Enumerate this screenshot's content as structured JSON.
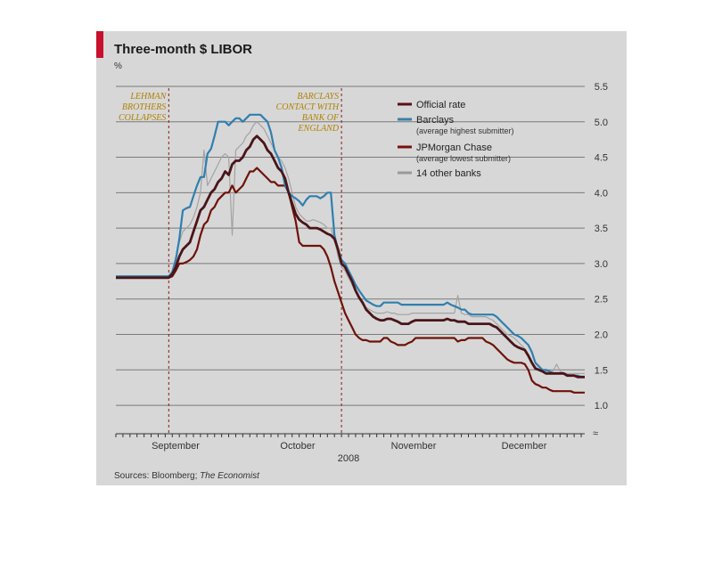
{
  "chart_data": {
    "type": "line",
    "title": "Three-month $ LIBOR",
    "unit": "%",
    "xlabel": "2008",
    "x_tick_labels": [
      "September",
      "October",
      "November",
      "December"
    ],
    "ylim": [
      0.8,
      5.6
    ],
    "yticks": [
      "5.5",
      "5.0",
      "4.5",
      "4.0",
      "3.5",
      "3.0",
      "2.5",
      "2.0",
      "1.5",
      "1.0"
    ],
    "source_prefix": "Sources: Bloomberg; ",
    "source_italic": "The Economist",
    "axis_break": "≈",
    "annotations": [
      {
        "lines": [
          "LEHMAN",
          "BROTHERS",
          "COLLAPSES"
        ],
        "x_index": 15
      },
      {
        "lines": [
          "BARCLAYS",
          "CONTACT WITH",
          "BANK OF",
          "ENGLAND"
        ],
        "x_index": 64
      }
    ],
    "legend": [
      {
        "label": "Official rate",
        "sub": "",
        "color": "#5a0f14"
      },
      {
        "label": "Barclays",
        "sub": "(average highest submitter)",
        "color": "#3a7fa8"
      },
      {
        "label": "JPMorgan Chase",
        "sub": "(average lowest submitter)",
        "color": "#7a1010"
      },
      {
        "label": "14 other banks",
        "sub": "",
        "color": "#9a9a9a"
      }
    ],
    "series": [
      {
        "name": "Barclays",
        "color": "#2f7fb0",
        "width": 2.2,
        "values": [
          2.82,
          2.82,
          2.82,
          2.82,
          2.82,
          2.82,
          2.82,
          2.82,
          2.82,
          2.82,
          2.82,
          2.82,
          2.82,
          2.82,
          2.82,
          2.82,
          2.88,
          3.05,
          3.35,
          3.75,
          3.78,
          3.8,
          3.95,
          4.1,
          4.22,
          4.22,
          4.55,
          4.62,
          4.8,
          5.0,
          5.0,
          5.0,
          4.95,
          5.0,
          5.05,
          5.05,
          5.0,
          5.05,
          5.1,
          5.1,
          5.1,
          5.1,
          5.05,
          5.0,
          4.85,
          4.6,
          4.5,
          4.35,
          4.1,
          4.0,
          3.95,
          3.92,
          3.88,
          3.82,
          3.9,
          3.95,
          3.95,
          3.95,
          3.92,
          3.95,
          4.0,
          4.0,
          3.4,
          3.2,
          3.05,
          3.0,
          2.9,
          2.8,
          2.7,
          2.62,
          2.55,
          2.48,
          2.45,
          2.42,
          2.4,
          2.4,
          2.45,
          2.45,
          2.45,
          2.45,
          2.45,
          2.42,
          2.42,
          2.42,
          2.42,
          2.42,
          2.42,
          2.42,
          2.42,
          2.42,
          2.42,
          2.42,
          2.42,
          2.42,
          2.45,
          2.42,
          2.4,
          2.38,
          2.35,
          2.35,
          2.3,
          2.28,
          2.28,
          2.28,
          2.28,
          2.28,
          2.28,
          2.28,
          2.25,
          2.2,
          2.15,
          2.1,
          2.05,
          2.0,
          1.98,
          1.95,
          1.9,
          1.85,
          1.75,
          1.6,
          1.55,
          1.5,
          1.5,
          1.48,
          1.45,
          1.45,
          1.45,
          1.45,
          1.43,
          1.42,
          1.42,
          1.42,
          1.4,
          1.4
        ]
      },
      {
        "name": "Official rate",
        "color": "#4a1418",
        "width": 2.8,
        "values": [
          2.8,
          2.8,
          2.8,
          2.8,
          2.8,
          2.8,
          2.8,
          2.8,
          2.8,
          2.8,
          2.8,
          2.8,
          2.8,
          2.8,
          2.8,
          2.8,
          2.85,
          2.95,
          3.1,
          3.2,
          3.25,
          3.3,
          3.45,
          3.6,
          3.75,
          3.8,
          3.9,
          4.0,
          4.05,
          4.15,
          4.2,
          4.3,
          4.25,
          4.4,
          4.45,
          4.45,
          4.5,
          4.6,
          4.65,
          4.75,
          4.8,
          4.75,
          4.7,
          4.6,
          4.55,
          4.45,
          4.35,
          4.3,
          4.2,
          4.0,
          3.85,
          3.7,
          3.62,
          3.58,
          3.55,
          3.5,
          3.5,
          3.5,
          3.48,
          3.45,
          3.42,
          3.4,
          3.35,
          3.2,
          3.0,
          2.95,
          2.85,
          2.75,
          2.62,
          2.52,
          2.45,
          2.35,
          2.3,
          2.25,
          2.22,
          2.2,
          2.2,
          2.22,
          2.22,
          2.2,
          2.18,
          2.15,
          2.15,
          2.15,
          2.18,
          2.2,
          2.2,
          2.2,
          2.2,
          2.2,
          2.2,
          2.2,
          2.2,
          2.2,
          2.22,
          2.2,
          2.2,
          2.18,
          2.18,
          2.18,
          2.15,
          2.15,
          2.15,
          2.15,
          2.15,
          2.15,
          2.15,
          2.12,
          2.1,
          2.05,
          2.0,
          1.95,
          1.9,
          1.85,
          1.82,
          1.8,
          1.78,
          1.7,
          1.6,
          1.52,
          1.5,
          1.48,
          1.45,
          1.45,
          1.45,
          1.45,
          1.45,
          1.45,
          1.42,
          1.42,
          1.42,
          1.4,
          1.4,
          1.4
        ]
      },
      {
        "name": "JPMorgan Chase",
        "color": "#6e1208",
        "width": 2.2,
        "values": [
          2.8,
          2.8,
          2.8,
          2.8,
          2.8,
          2.8,
          2.8,
          2.8,
          2.8,
          2.8,
          2.8,
          2.8,
          2.8,
          2.8,
          2.8,
          2.8,
          2.82,
          2.9,
          3.0,
          3.0,
          3.02,
          3.05,
          3.1,
          3.2,
          3.4,
          3.55,
          3.6,
          3.75,
          3.8,
          3.9,
          3.95,
          4.0,
          4.0,
          4.1,
          4.0,
          4.05,
          4.1,
          4.2,
          4.3,
          4.3,
          4.35,
          4.3,
          4.25,
          4.2,
          4.15,
          4.15,
          4.1,
          4.1,
          4.1,
          4.0,
          3.8,
          3.6,
          3.3,
          3.25,
          3.25,
          3.25,
          3.25,
          3.25,
          3.25,
          3.2,
          3.1,
          2.95,
          2.75,
          2.6,
          2.45,
          2.3,
          2.2,
          2.1,
          2.0,
          1.95,
          1.92,
          1.92,
          1.9,
          1.9,
          1.9,
          1.9,
          1.95,
          1.95,
          1.9,
          1.88,
          1.85,
          1.85,
          1.85,
          1.88,
          1.9,
          1.95,
          1.95,
          1.95,
          1.95,
          1.95,
          1.95,
          1.95,
          1.95,
          1.95,
          1.95,
          1.95,
          1.95,
          1.9,
          1.92,
          1.92,
          1.95,
          1.95,
          1.95,
          1.95,
          1.95,
          1.9,
          1.88,
          1.85,
          1.8,
          1.75,
          1.7,
          1.65,
          1.62,
          1.6,
          1.6,
          1.6,
          1.58,
          1.5,
          1.35,
          1.3,
          1.28,
          1.25,
          1.25,
          1.22,
          1.2,
          1.2,
          1.2,
          1.2,
          1.2,
          1.2,
          1.18,
          1.18,
          1.18,
          1.18
        ]
      },
      {
        "name": "14 other banks",
        "color": "#a3a3a3",
        "width": 1.2,
        "values": [
          2.82,
          2.82,
          2.82,
          2.82,
          2.82,
          2.82,
          2.82,
          2.82,
          2.82,
          2.82,
          2.82,
          2.82,
          2.82,
          2.82,
          2.82,
          2.82,
          2.9,
          3.1,
          3.3,
          3.45,
          3.5,
          3.55,
          3.65,
          3.8,
          4.0,
          4.6,
          4.1,
          4.2,
          4.3,
          4.4,
          4.5,
          4.55,
          4.5,
          3.4,
          4.6,
          4.65,
          4.7,
          4.8,
          4.85,
          4.95,
          5.0,
          4.95,
          4.9,
          4.8,
          4.7,
          4.6,
          4.5,
          4.45,
          4.35,
          4.2,
          4.0,
          3.8,
          3.7,
          3.65,
          3.6,
          3.6,
          3.62,
          3.6,
          3.58,
          3.55,
          3.5,
          3.5,
          3.35,
          3.1,
          2.95,
          2.9,
          2.8,
          2.7,
          2.6,
          2.5,
          2.42,
          2.38,
          2.35,
          2.32,
          2.3,
          2.3,
          2.3,
          2.32,
          2.3,
          2.3,
          2.28,
          2.28,
          2.28,
          2.28,
          2.3,
          2.3,
          2.3,
          2.3,
          2.3,
          2.3,
          2.3,
          2.3,
          2.3,
          2.3,
          2.3,
          2.3,
          2.3,
          2.55,
          2.3,
          2.28,
          2.28,
          2.25,
          2.25,
          2.25,
          2.25,
          2.25,
          2.22,
          2.2,
          2.15,
          2.1,
          2.05,
          2.0,
          1.98,
          1.95,
          1.9,
          1.85,
          1.8,
          1.7,
          1.6,
          1.55,
          1.5,
          1.5,
          1.48,
          1.48,
          1.48,
          1.58,
          1.48,
          1.46,
          1.45,
          1.45,
          1.45,
          1.45,
          1.45,
          1.45
        ]
      }
    ]
  }
}
